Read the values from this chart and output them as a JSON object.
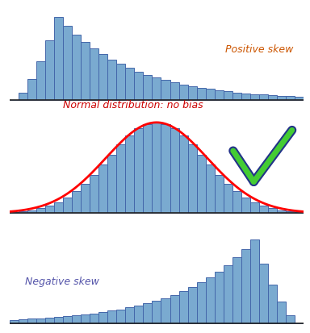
{
  "title1": "Positive skew",
  "title2": "Normal distribution: no bias",
  "title3": "Negative skew",
  "title1_color": "#cc5500",
  "title2_color": "#cc0000",
  "title3_color": "#5555aa",
  "bar_color": "#7aaad0",
  "bar_edge_color": "#4466aa",
  "n_bars": 33,
  "bg_color": "#ffffff",
  "curve_color": "#ff0000",
  "curve_lw": 2.0,
  "checkmark_green": "#44cc33",
  "checkmark_dark": "#223388",
  "title_fontsize": 9,
  "title2_fontsize": 9
}
